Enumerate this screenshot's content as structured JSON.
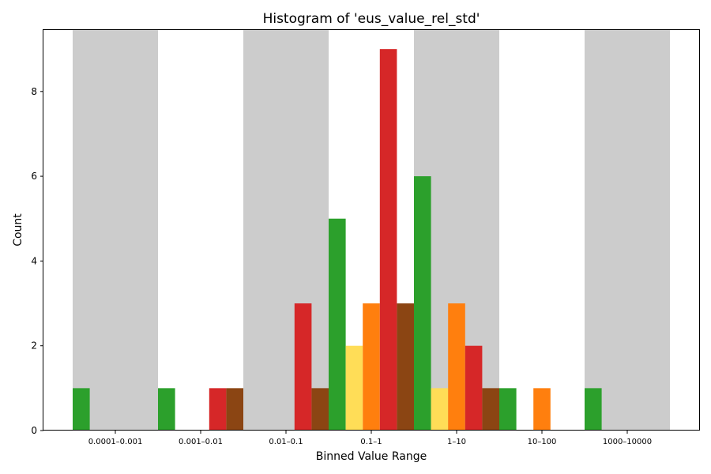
{
  "chart_data": {
    "type": "bar",
    "title": "Histogram of 'eus_value_rel_std'",
    "xlabel": "Binned Value Range",
    "ylabel": "Count",
    "ylim": [
      0,
      9.45
    ],
    "yticks": [
      0,
      2,
      4,
      6,
      8
    ],
    "grid": false,
    "legend": "none",
    "categories": [
      "0.0001–0.001",
      "0.001–0.01",
      "0.01–0.1",
      "0.1–1",
      "1–10",
      "10–100",
      "1000–10000"
    ],
    "shaded_categories": [
      0,
      2,
      4,
      6
    ],
    "shade_color": "#cccccc",
    "series": [
      {
        "color": "#2ca02c",
        "values": [
          1,
          1,
          0,
          5,
          6,
          1,
          1
        ]
      },
      {
        "color": "#ffdd57",
        "values": [
          0,
          0,
          0,
          2,
          1,
          0,
          0
        ]
      },
      {
        "color": "#ff7f0e",
        "values": [
          0,
          0,
          0,
          3,
          3,
          1,
          0
        ]
      },
      {
        "color": "#d62728",
        "values": [
          0,
          1,
          3,
          9,
          2,
          0,
          0
        ]
      },
      {
        "color": "#8b4513",
        "values": [
          0,
          1,
          1,
          3,
          1,
          0,
          0
        ]
      }
    ]
  }
}
